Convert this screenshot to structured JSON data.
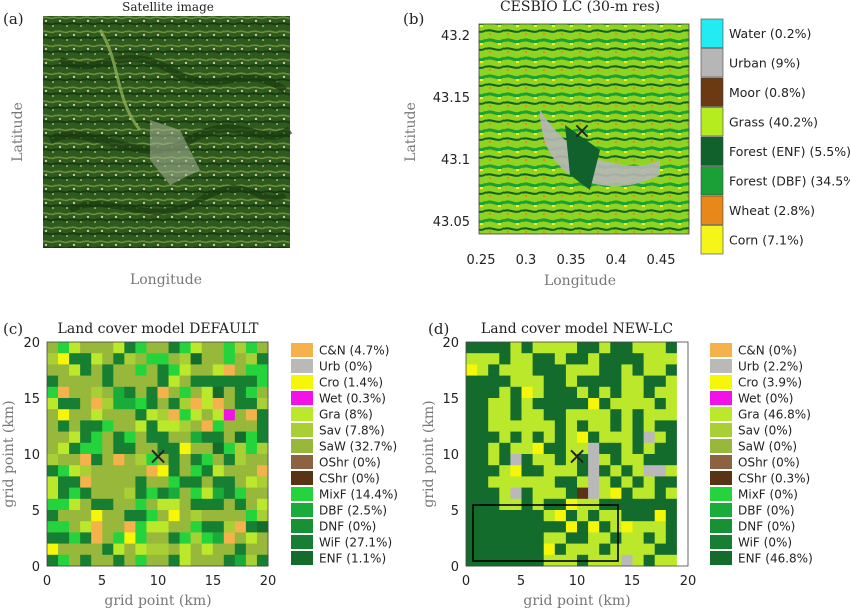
{
  "panels": {
    "a": {
      "letter": "(a)",
      "title": "Satellite image",
      "xlabel": "Longitude",
      "ylabel": "Latitude"
    },
    "b": {
      "letter": "(b)",
      "title": "CESBIO LC (30-m res)",
      "xlabel": "Longitude",
      "ylabel": "Latitude",
      "xticks": [
        "0.25",
        "0.3",
        "0.35",
        "0.4",
        "0.45"
      ],
      "yticks": [
        "43.2",
        "43.15",
        "43.1",
        "43.05"
      ],
      "legend": [
        {
          "label": "Water (0.2%)",
          "color": "#22ecf2"
        },
        {
          "label": "Urban (9%)",
          "color": "#b6b6b6"
        },
        {
          "label": "Moor (0.8%)",
          "color": "#6b3a12"
        },
        {
          "label": "Grass (40.2%)",
          "color": "#b5ec1f"
        },
        {
          "label": "Forest (ENF) (5.5%)",
          "color": "#10612c"
        },
        {
          "label": "Forest (DBF) (34.5%)",
          "color": "#1aa036"
        },
        {
          "label": "Wheat (2.8%)",
          "color": "#e8871a"
        },
        {
          "label": "Corn (7.1%)",
          "color": "#f5f51a"
        }
      ]
    },
    "c": {
      "letter": "(c)",
      "title": "Land cover model DEFAULT",
      "xlabel": "grid point (km)",
      "ylabel": "grid point (km)",
      "xticks": [
        "0",
        "5",
        "10",
        "15",
        "20"
      ],
      "yticks": [
        "20",
        "15",
        "10",
        "5",
        "0"
      ],
      "legend": [
        {
          "label": "C&N (4.7%)",
          "color": "#f5b14c"
        },
        {
          "label": "Urb (0%)",
          "color": "#b9b9b9"
        },
        {
          "label": "Cro (1.4%)",
          "color": "#f6f609"
        },
        {
          "label": "Wet (0.3%)",
          "color": "#f211e6"
        },
        {
          "label": "Gra (8%)",
          "color": "#bce82c"
        },
        {
          "label": "Sav (7.8%)",
          "color": "#a8cf34"
        },
        {
          "label": "SaW (32.7%)",
          "color": "#97b83a"
        },
        {
          "label": "OShr (0%)",
          "color": "#8c6242"
        },
        {
          "label": "CShr (0%)",
          "color": "#5a3214"
        },
        {
          "label": "MixF (14.4%)",
          "color": "#25d43c"
        },
        {
          "label": "DBF (2.5%)",
          "color": "#1aac3a"
        },
        {
          "label": "DNF (0%)",
          "color": "#179134"
        },
        {
          "label": "WiF (27.1%)",
          "color": "#177f32"
        },
        {
          "label": "ENF (1.1%)",
          "color": "#136b2c"
        }
      ]
    },
    "d": {
      "letter": "(d)",
      "title": "Land cover model NEW-LC",
      "xlabel": "grid point (km)",
      "ylabel": "grid point (km)",
      "xticks": [
        "0",
        "5",
        "10",
        "15",
        "20"
      ],
      "yticks": [
        "20",
        "15",
        "10",
        "5",
        "0"
      ],
      "legend": [
        {
          "label": "C&N (0%)",
          "color": "#f5b14c"
        },
        {
          "label": "Urb (2.2%)",
          "color": "#b9b9b9"
        },
        {
          "label": "Cro (3.9%)",
          "color": "#f6f609"
        },
        {
          "label": "Wet (0%)",
          "color": "#f211e6"
        },
        {
          "label": "Gra (46.8%)",
          "color": "#bce82c"
        },
        {
          "label": "Sav (0%)",
          "color": "#a8cf34"
        },
        {
          "label": "SaW (0%)",
          "color": "#97b83a"
        },
        {
          "label": "OShr (0%)",
          "color": "#8c6242"
        },
        {
          "label": "CShr (0.3%)",
          "color": "#5a3214"
        },
        {
          "label": "MixF (0%)",
          "color": "#25d43c"
        },
        {
          "label": "DBF (0%)",
          "color": "#1aac3a"
        },
        {
          "label": "DNF (0%)",
          "color": "#179134"
        },
        {
          "label": "WiF (0%)",
          "color": "#177f32"
        },
        {
          "label": "ENF (46.8%)",
          "color": "#136b2c"
        }
      ]
    }
  },
  "marker": "×"
}
